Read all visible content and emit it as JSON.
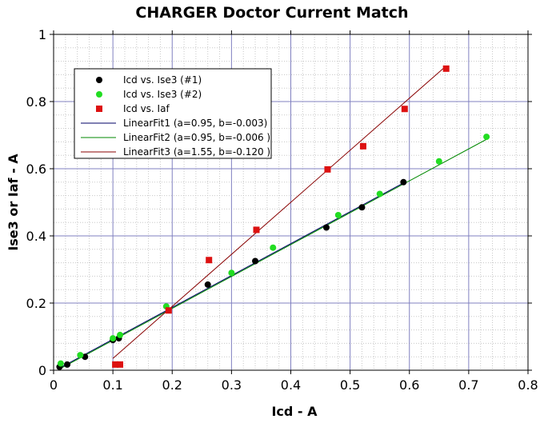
{
  "chart_data": {
    "type": "scatter",
    "title": "CHARGER Doctor Current Match",
    "xlabel": "Icd - A",
    "ylabel": "Ise3 or Iaf - A",
    "xlim": [
      0,
      0.8
    ],
    "ylim": [
      0,
      1
    ],
    "xticks": [
      "0",
      "0.1",
      "0.2",
      "0.3",
      "0.4",
      "0.5",
      "0.6",
      "0.7",
      "0.8"
    ],
    "yticks": [
      "0",
      "0.2",
      "0.4",
      "0.6",
      "0.8",
      "1"
    ],
    "grid": true,
    "legend_position": "top-left",
    "series": [
      {
        "name": "Icd vs. Ise3 (#1)",
        "marker": "circle",
        "color": "#000000",
        "x": [
          0.01,
          0.023,
          0.053,
          0.1,
          0.11,
          0.26,
          0.34,
          0.46,
          0.52,
          0.59
        ],
        "y": [
          0.01,
          0.017,
          0.04,
          0.09,
          0.095,
          0.255,
          0.325,
          0.425,
          0.485,
          0.56
        ]
      },
      {
        "name": "Icd vs. Ise3 (#2)",
        "marker": "circle",
        "color": "#22dd22",
        "x": [
          0.012,
          0.045,
          0.1,
          0.112,
          0.19,
          0.3,
          0.37,
          0.48,
          0.55,
          0.65,
          0.73
        ],
        "y": [
          0.02,
          0.045,
          0.095,
          0.105,
          0.19,
          0.29,
          0.365,
          0.462,
          0.525,
          0.622,
          0.695
        ]
      },
      {
        "name": "Icd vs. Iaf",
        "marker": "square",
        "color": "#dd1111",
        "x": [
          0.104,
          0.112,
          0.194,
          0.262,
          0.342,
          0.462,
          0.522,
          0.592,
          0.662
        ],
        "y": [
          0.017,
          0.017,
          0.178,
          0.328,
          0.418,
          0.598,
          0.667,
          0.778,
          0.898
        ]
      }
    ],
    "fits": [
      {
        "name": "LinearFit1 (a=0.95, b=-0.003)",
        "color": "#000066",
        "a": 0.95,
        "b": -0.003,
        "x_range": [
          0.01,
          0.59
        ]
      },
      {
        "name": "LinearFit2 (a=0.95, b=-0.006 )",
        "color": "#008800",
        "a": 0.95,
        "b": -0.006,
        "x_range": [
          0.012,
          0.73
        ]
      },
      {
        "name": "LinearFit3 (a=1.55, b=-0.120 )",
        "color": "#880000",
        "a": 1.55,
        "b": -0.12,
        "x_range": [
          0.1,
          0.66
        ]
      }
    ],
    "legend": [
      "Icd vs. Ise3 (#1)",
      "Icd vs. Ise3 (#2)",
      "Icd vs. Iaf",
      "LinearFit1 (a=0.95, b=-0.003)",
      "LinearFit2 (a=0.95, b=-0.006 )",
      "LinearFit3 (a=1.55, b=-0.120 )"
    ]
  }
}
